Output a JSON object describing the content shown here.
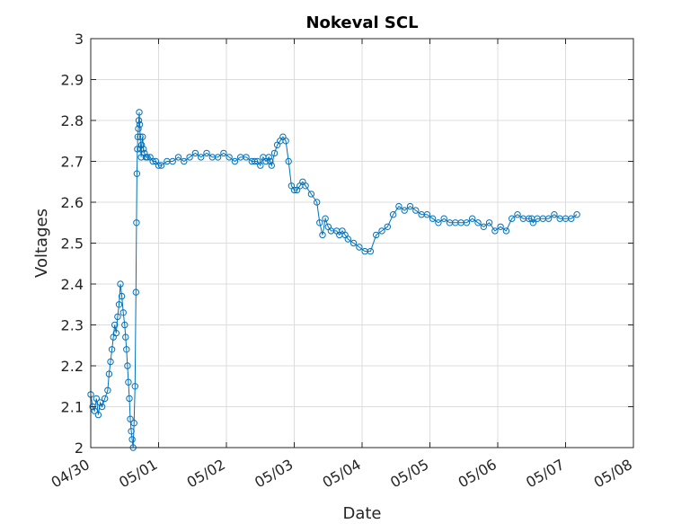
{
  "chart_data": {
    "type": "scatter",
    "title": "Nokeval SCL",
    "xlabel": "Date",
    "ylabel": "Voltages",
    "x_unit": "days",
    "xlim": [
      "04/30",
      "05/08"
    ],
    "ylim": [
      2,
      3
    ],
    "x_ticks": [
      "04/30",
      "05/01",
      "05/02",
      "05/03",
      "05/04",
      "05/05",
      "05/06",
      "05/07",
      "05/08"
    ],
    "y_ticks": [
      "2",
      "2.1",
      "2.2",
      "2.3",
      "2.4",
      "2.5",
      "2.6",
      "2.7",
      "2.8",
      "2.9",
      "3"
    ],
    "grid": true,
    "marker": "circle",
    "connected_line": true,
    "color": "#0072BD",
    "series": [
      {
        "x": [
          "04/30 00:00",
          "04/30 00:40",
          "04/30 01:20",
          "04/30 02:00",
          "04/30 02:40",
          "04/30 03:20",
          "04/30 04:00",
          "04/30 05:00",
          "04/30 06:00",
          "04/30 06:30",
          "04/30 07:00",
          "04/30 07:30",
          "04/30 08:00",
          "04/30 08:30",
          "04/30 09:00",
          "04/30 09:30",
          "04/30 10:00",
          "04/30 10:30",
          "04/30 11:00",
          "04/30 11:30",
          "04/30 12:00",
          "04/30 12:20",
          "04/30 12:40",
          "04/30 13:00",
          "04/30 13:20",
          "04/30 13:40",
          "04/30 14:00",
          "04/30 14:20",
          "04/30 14:40",
          "04/30 15:00",
          "04/30 15:20",
          "04/30 15:40",
          "04/30 16:00",
          "04/30 16:10",
          "04/30 16:20",
          "04/30 16:30",
          "04/30 16:40",
          "04/30 16:50",
          "04/30 17:00",
          "04/30 17:10",
          "04/30 17:20",
          "04/30 17:30",
          "04/30 17:40",
          "04/30 17:50",
          "04/30 18:00",
          "04/30 18:20",
          "04/30 18:40",
          "04/30 19:00",
          "04/30 19:30",
          "04/30 20:00",
          "04/30 21:00",
          "04/30 22:00",
          "04/30 23:00",
          "05/01 00:00",
          "05/01 01:00",
          "05/01 03:00",
          "05/01 05:00",
          "05/01 07:00",
          "05/01 09:00",
          "05/01 11:00",
          "05/01 13:00",
          "05/01 15:00",
          "05/01 17:00",
          "05/01 19:00",
          "05/01 21:00",
          "05/01 23:00",
          "05/02 01:00",
          "05/02 03:00",
          "05/02 05:00",
          "05/02 07:00",
          "05/02 09:00",
          "05/02 10:00",
          "05/02 11:00",
          "05/02 12:00",
          "05/02 13:00",
          "05/02 14:00",
          "05/02 15:00",
          "05/02 15:30",
          "05/02 16:00",
          "05/02 17:00",
          "05/02 18:00",
          "05/02 19:00",
          "05/02 20:00",
          "05/02 21:00",
          "05/02 22:00",
          "05/02 23:00",
          "05/03 00:00",
          "05/03 01:00",
          "05/03 02:00",
          "05/03 03:00",
          "05/03 04:00",
          "05/03 06:00",
          "05/03 08:00",
          "05/03 09:00",
          "05/03 10:00",
          "05/03 11:00",
          "05/03 12:00",
          "05/03 13:00",
          "05/03 15:00",
          "05/03 16:00",
          "05/03 17:00",
          "05/03 18:00",
          "05/03 19:00",
          "05/03 21:00",
          "05/03 23:00",
          "05/04 01:00",
          "05/04 03:00",
          "05/04 05:00",
          "05/04 07:00",
          "05/04 09:00",
          "05/04 11:00",
          "05/04 13:00",
          "05/04 15:00",
          "05/04 17:00",
          "05/04 19:00",
          "05/04 21:00",
          "05/04 23:00",
          "05/05 01:00",
          "05/05 03:00",
          "05/05 05:00",
          "05/05 07:00",
          "05/05 09:00",
          "05/05 11:00",
          "05/05 13:00",
          "05/05 15:00",
          "05/05 17:00",
          "05/05 19:00",
          "05/05 21:00",
          "05/05 23:00",
          "05/06 01:00",
          "05/06 03:00",
          "05/06 05:00",
          "05/06 07:00",
          "05/06 09:00",
          "05/06 11:00",
          "05/06 12:00",
          "05/06 12:30",
          "05/06 14:00",
          "05/06 16:00",
          "05/06 18:00",
          "05/06 20:00",
          "05/06 22:00",
          "05/07 00:00",
          "05/07 02:00",
          "05/07 04:00"
        ],
        "y": [
          2.13,
          2.1,
          2.09,
          2.12,
          2.08,
          2.11,
          2.1,
          2.12,
          2.14,
          2.18,
          2.21,
          2.24,
          2.27,
          2.3,
          2.28,
          2.32,
          2.35,
          2.4,
          2.37,
          2.33,
          2.3,
          2.27,
          2.24,
          2.2,
          2.16,
          2.12,
          2.07,
          2.04,
          2.02,
          2.0,
          2.06,
          2.15,
          2.38,
          2.55,
          2.67,
          2.73,
          2.76,
          2.78,
          2.8,
          2.82,
          2.79,
          2.76,
          2.73,
          2.71,
          2.74,
          2.76,
          2.73,
          2.72,
          2.71,
          2.71,
          2.71,
          2.7,
          2.7,
          2.69,
          2.69,
          2.7,
          2.7,
          2.71,
          2.7,
          2.71,
          2.72,
          2.71,
          2.72,
          2.71,
          2.71,
          2.72,
          2.71,
          2.7,
          2.71,
          2.71,
          2.7,
          2.7,
          2.7,
          2.69,
          2.71,
          2.7,
          2.71,
          2.7,
          2.69,
          2.72,
          2.74,
          2.75,
          2.76,
          2.75,
          2.7,
          2.64,
          2.63,
          2.63,
          2.64,
          2.65,
          2.64,
          2.62,
          2.6,
          2.55,
          2.52,
          2.56,
          2.54,
          2.53,
          2.53,
          2.52,
          2.53,
          2.52,
          2.51,
          2.5,
          2.49,
          2.48,
          2.48,
          2.52,
          2.53,
          2.54,
          2.57,
          2.59,
          2.58,
          2.59,
          2.58,
          2.57,
          2.57,
          2.56,
          2.55,
          2.56,
          2.55,
          2.55,
          2.55,
          2.55,
          2.56,
          2.55,
          2.54,
          2.55,
          2.53,
          2.54,
          2.53,
          2.56,
          2.57,
          2.56,
          2.56,
          2.56,
          2.55,
          2.56,
          2.56,
          2.56,
          2.57,
          2.56,
          2.56,
          2.56,
          2.57
        ]
      }
    ]
  }
}
